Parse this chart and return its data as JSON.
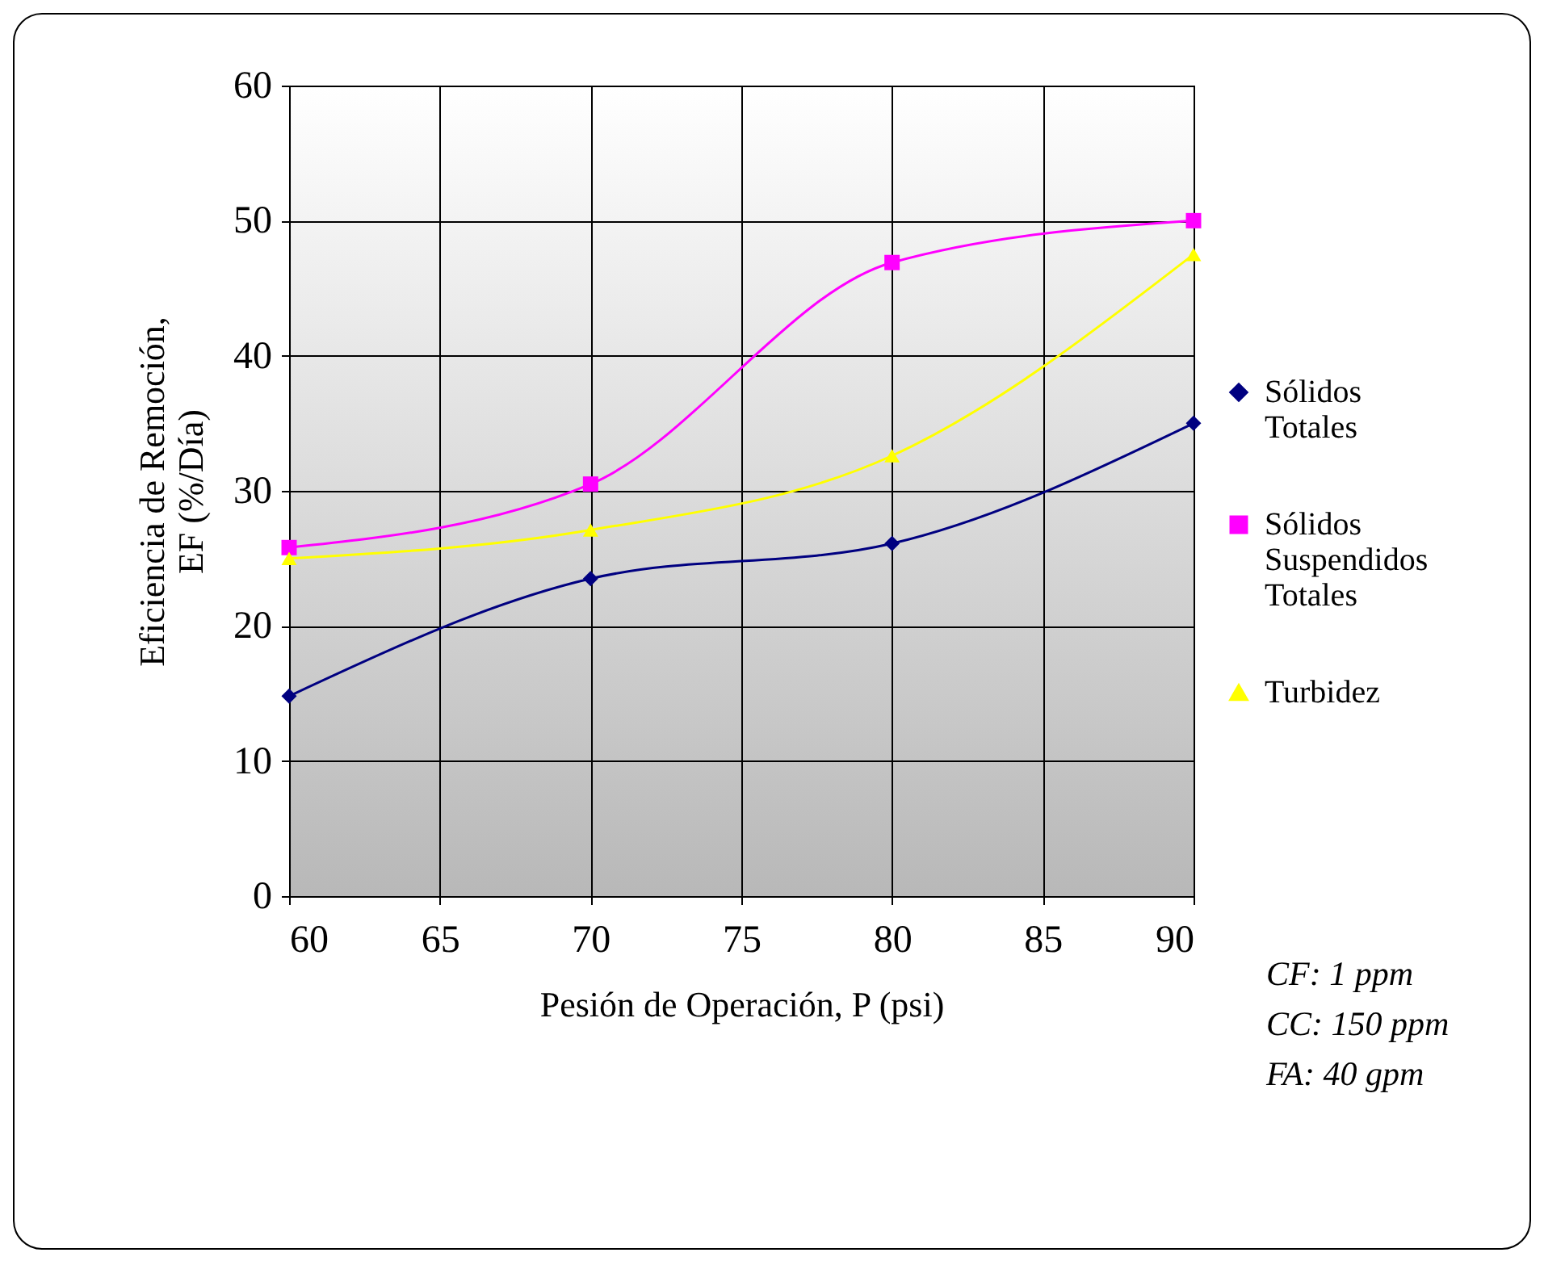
{
  "chart_data": {
    "type": "line",
    "xlabel": "Pesión de Operación, P (psi)",
    "ylabel": "Eficiencia de Remoción, EF (%/Día)",
    "x": [
      60,
      70,
      80,
      90
    ],
    "series": [
      {
        "name": "Sólidos Totales",
        "color": "#000080",
        "marker": "diamond",
        "values": [
          14.8,
          23.5,
          26.1,
          35
        ]
      },
      {
        "name": "Sólidos Suspendidos Totales",
        "color": "#ff00ff",
        "marker": "square",
        "values": [
          25.8,
          30.5,
          46.9,
          50
        ]
      },
      {
        "name": "Turbidez",
        "color": "#ffff00",
        "marker": "triangle",
        "values": [
          25,
          27.1,
          32.6,
          47.5
        ]
      }
    ],
    "xlim": [
      60,
      90
    ],
    "xticks": [
      60,
      65,
      70,
      75,
      80,
      85,
      90
    ],
    "ylim": [
      0,
      60
    ],
    "yticks": [
      0,
      10,
      20,
      30,
      40,
      50,
      60
    ],
    "grid": true,
    "legend": "right",
    "annotations": [
      "CF: 1 ppm",
      "CC: 150 ppm",
      "FA: 40 gpm"
    ]
  }
}
